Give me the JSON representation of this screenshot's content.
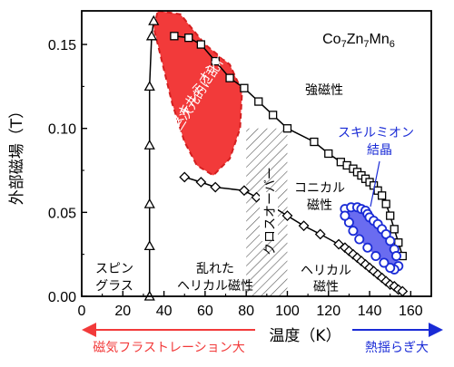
{
  "chart_data": {
    "type": "scatter",
    "title": "Co7Zn7Mn6",
    "xlabel": "温度（K）",
    "ylabel": "外部磁場（T）",
    "xlim": [
      0,
      170
    ],
    "ylim": [
      0,
      0.17
    ],
    "x_ticks": [
      "0",
      "20",
      "40",
      "60",
      "80",
      "100",
      "120",
      "140",
      "160"
    ],
    "y_ticks": [
      "0.00",
      "0.05",
      "0.10",
      "0.15"
    ],
    "series": [
      {
        "marker": "square",
        "x": [
          45,
          52,
          58,
          65,
          72,
          79,
          86,
          93,
          100,
          113,
          120,
          126,
          129,
          132,
          134,
          136,
          138,
          140,
          142,
          144,
          146,
          148,
          150,
          152,
          154,
          156
        ],
        "y": [
          0.155,
          0.154,
          0.15,
          0.14,
          0.13,
          0.124,
          0.116,
          0.108,
          0.1,
          0.092,
          0.085,
          0.08,
          0.078,
          0.076,
          0.074,
          0.072,
          0.07,
          0.068,
          0.066,
          0.063,
          0.06,
          0.055,
          0.048,
          0.04,
          0.032,
          0.024
        ]
      },
      {
        "marker": "triangle",
        "x": [
          33,
          33,
          33,
          33,
          33,
          34,
          35
        ],
        "y": [
          0.0,
          0.03,
          0.055,
          0.09,
          0.125,
          0.155,
          0.164
        ]
      },
      {
        "marker": "diamond",
        "x": [
          50,
          58,
          65,
          79,
          85,
          92,
          100,
          108,
          116,
          125,
          128,
          130,
          132,
          134,
          136,
          138,
          140,
          142,
          144,
          146,
          148,
          150,
          152,
          154,
          156
        ],
        "y": [
          0.071,
          0.068,
          0.065,
          0.063,
          0.059,
          0.054,
          0.048,
          0.042,
          0.037,
          0.031,
          0.029,
          0.027,
          0.025,
          0.023,
          0.021,
          0.019,
          0.017,
          0.015,
          0.013,
          0.011,
          0.009,
          0.007,
          0.006,
          0.004,
          0.003
        ]
      },
      {
        "marker": "circle",
        "x": [
          128,
          131,
          134,
          136,
          138,
          139,
          140,
          142,
          144,
          146,
          148,
          150,
          152,
          153,
          154,
          152,
          150,
          147,
          143,
          139,
          135,
          132,
          130,
          128
        ],
        "y": [
          0.052,
          0.053,
          0.053,
          0.052,
          0.051,
          0.049,
          0.047,
          0.045,
          0.043,
          0.04,
          0.037,
          0.033,
          0.028,
          0.024,
          0.018,
          0.016,
          0.017,
          0.02,
          0.024,
          0.029,
          0.034,
          0.039,
          0.044,
          0.048
        ]
      }
    ],
    "red_region": [
      [
        37,
        0.17
      ],
      [
        48,
        0.168
      ],
      [
        60,
        0.15
      ],
      [
        72,
        0.138
      ],
      [
        78,
        0.122
      ],
      [
        77,
        0.1
      ],
      [
        72,
        0.082
      ],
      [
        64,
        0.072
      ],
      [
        56,
        0.078
      ],
      [
        50,
        0.092
      ],
      [
        44,
        0.115
      ],
      [
        39,
        0.14
      ],
      [
        35,
        0.16
      ]
    ],
    "blue_region": [
      [
        128,
        0.052
      ],
      [
        136,
        0.052
      ],
      [
        140,
        0.047
      ],
      [
        146,
        0.04
      ],
      [
        152,
        0.028
      ],
      [
        154,
        0.018
      ],
      [
        150,
        0.017
      ],
      [
        143,
        0.024
      ],
      [
        135,
        0.034
      ],
      [
        130,
        0.044
      ]
    ],
    "hatch_region": {
      "x": [
        80,
        100
      ],
      "y": [
        0.0,
        0.1
      ]
    },
    "annotations": {
      "phase_ferro": "強磁性",
      "phase_conical_1": "コニカル",
      "phase_conical_2": "磁性",
      "phase_helical_1": "ヘリカル",
      "phase_helical_2": "磁性",
      "phase_disordered_1": "乱れた",
      "phase_disordered_2": "ヘリカル磁性",
      "phase_spinglass_1": "スピン",
      "phase_spinglass_2": "グラス",
      "crossover": "クロスオーバー",
      "red_text_1": "三次元的に乱れた",
      "red_text_2": "新奇スキルミオン",
      "blue_text_1": "スキルミオン",
      "blue_text_2": "結晶",
      "bottom_left": "磁気フラストレーション大",
      "bottom_right": "熱揺らぎ大"
    },
    "colors": {
      "red_region": "#f23a3a",
      "blue_region": "#6a6cf0",
      "blue_marker": "#1a2bd6",
      "annotation_red": "#f23a3a",
      "annotation_blue": "#1a2bd6"
    }
  }
}
